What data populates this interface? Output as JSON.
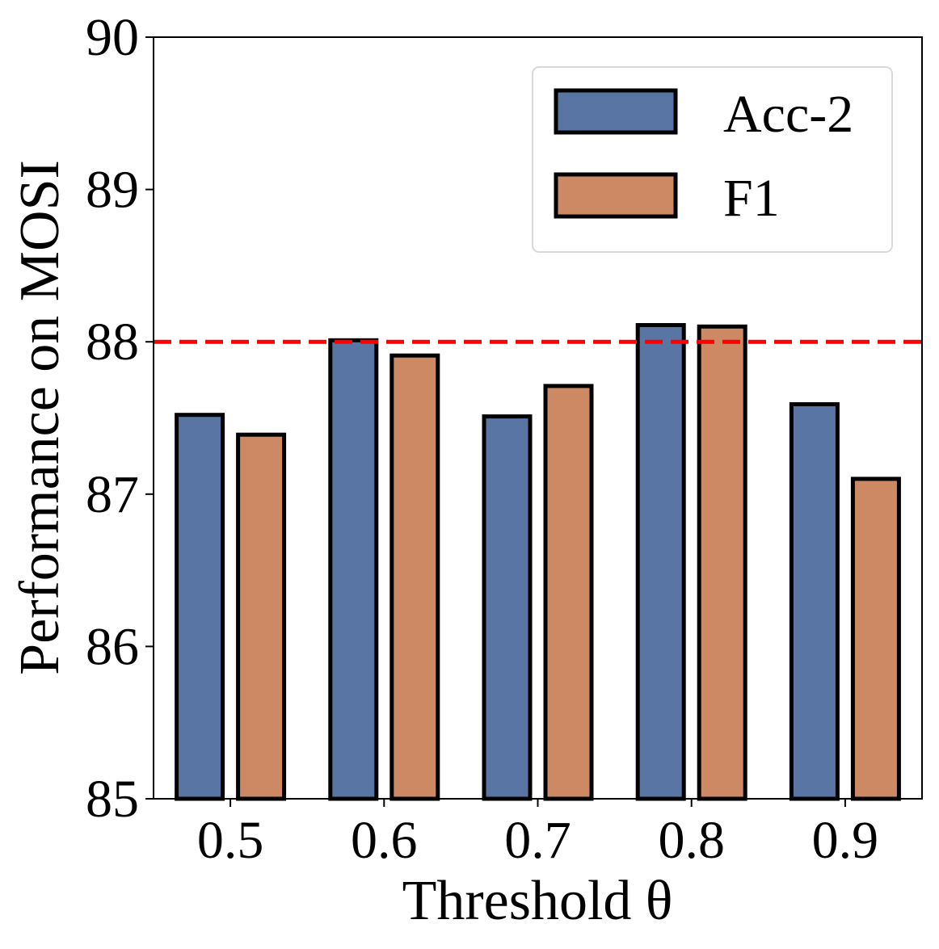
{
  "chart_data": {
    "type": "bar",
    "title": "",
    "xlabel": "Threshold θ",
    "ylabel": "Performance on MOSI",
    "categories": [
      "0.5",
      "0.6",
      "0.7",
      "0.8",
      "0.9"
    ],
    "series": [
      {
        "name": "Acc-2",
        "values": [
          87.52,
          88.01,
          87.51,
          88.11,
          87.59
        ],
        "color": "#5975a4"
      },
      {
        "name": "F1",
        "values": [
          87.39,
          87.91,
          87.71,
          88.1,
          87.1
        ],
        "color": "#cc8963"
      }
    ],
    "ylim": [
      85,
      90
    ],
    "yticks": [
      "85",
      "86",
      "87",
      "88",
      "89",
      "90"
    ],
    "highlight_tick": "88",
    "highlight_color": "#ff0000",
    "reference_line": {
      "value": 88,
      "color": "#ff0000",
      "style": "dashed"
    },
    "legend": {
      "placement": "top-right",
      "entries": [
        "Acc-2",
        "F1"
      ]
    },
    "grid": false
  }
}
